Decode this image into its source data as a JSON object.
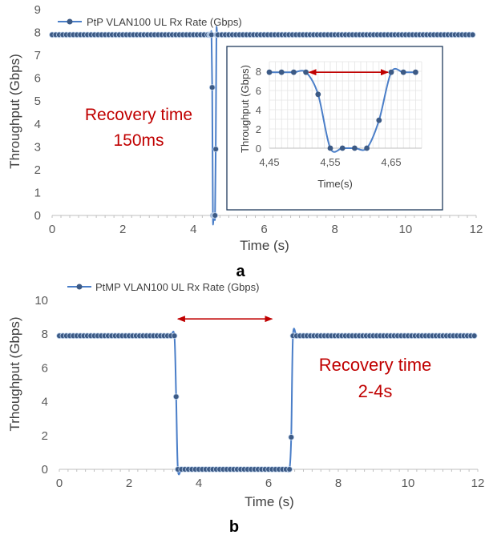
{
  "chart_data": [
    {
      "id": "a",
      "type": "line",
      "panel_label": "a",
      "xlabel": "Time (s)",
      "ylabel": "Throughput (Gbps)",
      "xlim": [
        0,
        12
      ],
      "ylim": [
        0,
        9
      ],
      "x_ticks": [
        0,
        2,
        4,
        6,
        8,
        10,
        12
      ],
      "y_ticks": [
        0,
        1,
        2,
        3,
        4,
        5,
        6,
        7,
        8,
        9
      ],
      "series": [
        {
          "name": "PtP VLAN100 UL Rx Rate (Gbps)",
          "color": "#4a7ec8",
          "x": [
            0,
            0.1,
            0.2,
            0.3,
            0.4,
            0.5,
            0.6,
            0.7,
            0.8,
            0.9,
            1.0,
            1.1,
            1.2,
            1.3,
            1.4,
            1.5,
            1.6,
            1.7,
            1.8,
            1.9,
            2.0,
            2.1,
            2.2,
            2.3,
            2.4,
            2.5,
            2.6,
            2.7,
            2.8,
            2.9,
            3.0,
            3.1,
            3.2,
            3.3,
            3.4,
            3.5,
            3.6,
            3.7,
            3.8,
            3.9,
            4.0,
            4.1,
            4.2,
            4.3,
            4.4,
            4.45,
            4.47,
            4.49,
            4.51,
            4.53,
            4.55,
            4.57,
            4.59,
            4.61,
            4.63,
            4.65,
            4.67,
            4.69,
            4.8,
            4.9,
            5.0,
            5.1,
            5.2,
            5.3,
            5.4,
            5.5,
            5.6,
            5.7,
            5.8,
            5.9,
            6.0,
            6.1,
            6.2,
            6.3,
            6.4,
            6.5,
            6.6,
            6.7,
            6.8,
            6.9,
            7.0,
            7.1,
            7.2,
            7.3,
            7.4,
            7.5,
            7.6,
            7.7,
            7.8,
            7.9,
            8.0,
            8.1,
            8.2,
            8.3,
            8.4,
            8.5,
            8.6,
            8.7,
            8.8,
            8.9,
            9.0,
            9.1,
            9.2,
            9.3,
            9.4,
            9.5,
            9.6,
            9.7,
            9.8,
            9.9,
            10.0,
            10.1,
            10.2,
            10.3,
            10.4,
            10.5,
            10.6,
            10.7,
            10.8,
            10.9,
            11.0,
            11.1,
            11.2,
            11.3,
            11.4,
            11.5,
            11.6,
            11.7,
            11.8,
            11.9
          ],
          "y": [
            7.9,
            7.9,
            7.9,
            7.9,
            7.9,
            7.9,
            7.9,
            7.9,
            7.9,
            7.9,
            7.9,
            7.9,
            7.9,
            7.9,
            7.9,
            7.9,
            7.9,
            7.9,
            7.9,
            7.9,
            7.9,
            7.9,
            7.9,
            7.9,
            7.9,
            7.9,
            7.9,
            7.9,
            7.9,
            7.9,
            7.9,
            7.9,
            7.9,
            7.9,
            7.9,
            7.9,
            7.9,
            7.9,
            7.9,
            7.9,
            7.9,
            7.9,
            7.9,
            7.9,
            7.9,
            7.9,
            7.9,
            7.9,
            7.9,
            5.6,
            0,
            0,
            0,
            0,
            2.9,
            7.9,
            7.9,
            7.9,
            7.9,
            7.9,
            7.9,
            7.9,
            7.9,
            7.9,
            7.9,
            7.9,
            7.9,
            7.9,
            7.9,
            7.9,
            7.9,
            7.9,
            7.9,
            7.9,
            7.9,
            7.9,
            7.9,
            7.9,
            7.9,
            7.9,
            7.9,
            7.9,
            7.9,
            7.9,
            7.9,
            7.9,
            7.9,
            7.9,
            7.9,
            7.9,
            7.9,
            7.9,
            7.9,
            7.9,
            7.9,
            7.9,
            7.9,
            7.9,
            7.9,
            7.9,
            7.9,
            7.9,
            7.9,
            7.9,
            7.9,
            7.9,
            7.9,
            7.9,
            7.9,
            7.9,
            7.9,
            7.9,
            7.9,
            7.9,
            7.9,
            7.9,
            7.9,
            7.9,
            7.9,
            7.9,
            7.9,
            7.9,
            7.9,
            7.9,
            7.9,
            7.9,
            7.9,
            7.9,
            7.9,
            7.9
          ]
        }
      ],
      "annotation": {
        "line1": "Recovery time",
        "line2": "150ms",
        "color": "#c00000"
      },
      "inset": {
        "type": "line",
        "xlabel": "Time(s)",
        "ylabel": "Throughput (Gbps)",
        "xlim": [
          4.45,
          4.7
        ],
        "ylim": [
          0,
          9
        ],
        "x_ticks": [
          4.45,
          4.55,
          4.65
        ],
        "x_tick_labels": [
          "4,45",
          "4,55",
          "4,65"
        ],
        "y_ticks": [
          0,
          2,
          4,
          6,
          8
        ],
        "series": [
          {
            "name": "PtP VLAN100 UL Rx Rate (Gbps)",
            "color": "#4a7ec8",
            "x": [
              4.45,
              4.47,
              4.49,
              4.51,
              4.53,
              4.55,
              4.57,
              4.59,
              4.61,
              4.63,
              4.65,
              4.67,
              4.69
            ],
            "y": [
              7.9,
              7.9,
              7.9,
              7.9,
              5.6,
              0,
              0,
              0,
              0,
              2.9,
              7.9,
              7.9,
              7.9
            ]
          }
        ],
        "arrow": {
          "x_from": 4.51,
          "x_to": 4.65,
          "y": 7.9,
          "color": "#c00000"
        }
      }
    },
    {
      "id": "b",
      "type": "line",
      "panel_label": "b",
      "xlabel": "Time (s)",
      "ylabel": "Trhoughput (Gbps)",
      "xlim": [
        0,
        12
      ],
      "ylim": [
        0,
        10
      ],
      "x_ticks": [
        0,
        2,
        4,
        6,
        8,
        10,
        12
      ],
      "y_ticks": [
        0,
        2,
        4,
        6,
        8,
        10
      ],
      "series": [
        {
          "name": "PtMP VLAN100 UL Rx Rate (Gbps)",
          "color": "#4a7ec8",
          "x": [
            0,
            0.1,
            0.2,
            0.3,
            0.4,
            0.5,
            0.6,
            0.7,
            0.8,
            0.9,
            1.0,
            1.1,
            1.2,
            1.3,
            1.4,
            1.5,
            1.6,
            1.7,
            1.8,
            1.9,
            2.0,
            2.1,
            2.2,
            2.3,
            2.4,
            2.5,
            2.6,
            2.7,
            2.8,
            2.9,
            3.0,
            3.1,
            3.2,
            3.3,
            3.35,
            3.4,
            3.5,
            3.6,
            3.7,
            3.8,
            3.9,
            4.0,
            4.1,
            4.2,
            4.3,
            4.4,
            4.5,
            4.6,
            4.7,
            4.8,
            4.9,
            5.0,
            5.1,
            5.2,
            5.3,
            5.4,
            5.5,
            5.6,
            5.7,
            5.8,
            5.9,
            6.0,
            6.1,
            6.2,
            6.3,
            6.4,
            6.5,
            6.6,
            6.65,
            6.7,
            6.8,
            6.9,
            7.0,
            7.1,
            7.2,
            7.3,
            7.4,
            7.5,
            7.6,
            7.7,
            7.8,
            7.9,
            8.0,
            8.1,
            8.2,
            8.3,
            8.4,
            8.5,
            8.6,
            8.7,
            8.8,
            8.9,
            9.0,
            9.1,
            9.2,
            9.3,
            9.4,
            9.5,
            9.6,
            9.7,
            9.8,
            9.9,
            10.0,
            10.1,
            10.2,
            10.3,
            10.4,
            10.5,
            10.6,
            10.7,
            10.8,
            10.9,
            11.0,
            11.1,
            11.2,
            11.3,
            11.4,
            11.5,
            11.6,
            11.7,
            11.8,
            11.9
          ],
          "y": [
            7.9,
            7.9,
            7.9,
            7.9,
            7.9,
            7.9,
            7.9,
            7.9,
            7.9,
            7.9,
            7.9,
            7.9,
            7.9,
            7.9,
            7.9,
            7.9,
            7.9,
            7.9,
            7.9,
            7.9,
            7.9,
            7.9,
            7.9,
            7.9,
            7.9,
            7.9,
            7.9,
            7.9,
            7.9,
            7.9,
            7.9,
            7.9,
            7.9,
            7.9,
            4.3,
            0,
            0,
            0,
            0,
            0,
            0,
            0,
            0,
            0,
            0,
            0,
            0,
            0,
            0,
            0,
            0,
            0,
            0,
            0,
            0,
            0,
            0,
            0,
            0,
            0,
            0,
            0,
            0,
            0,
            0,
            0,
            0,
            0,
            1.9,
            7.9,
            7.9,
            7.9,
            7.9,
            7.9,
            7.9,
            7.9,
            7.9,
            7.9,
            7.9,
            7.9,
            7.9,
            7.9,
            7.9,
            7.9,
            7.9,
            7.9,
            7.9,
            7.9,
            7.9,
            7.9,
            7.9,
            7.9,
            7.9,
            7.9,
            7.9,
            7.9,
            7.9,
            7.9,
            7.9,
            7.9,
            7.9,
            7.9,
            7.9,
            7.9,
            7.9,
            7.9,
            7.9,
            7.9,
            7.9,
            7.9,
            7.9,
            7.9,
            7.9,
            7.9,
            7.9,
            7.9,
            7.9,
            7.9,
            7.9,
            7.9,
            7.9,
            7.9
          ]
        }
      ],
      "annotation": {
        "line1": "Recovery time",
        "line2": "2-4s",
        "color": "#c00000"
      },
      "arrow": {
        "x_from": 3.4,
        "x_to": 6.1,
        "y": 8.9,
        "color": "#c00000"
      }
    }
  ]
}
